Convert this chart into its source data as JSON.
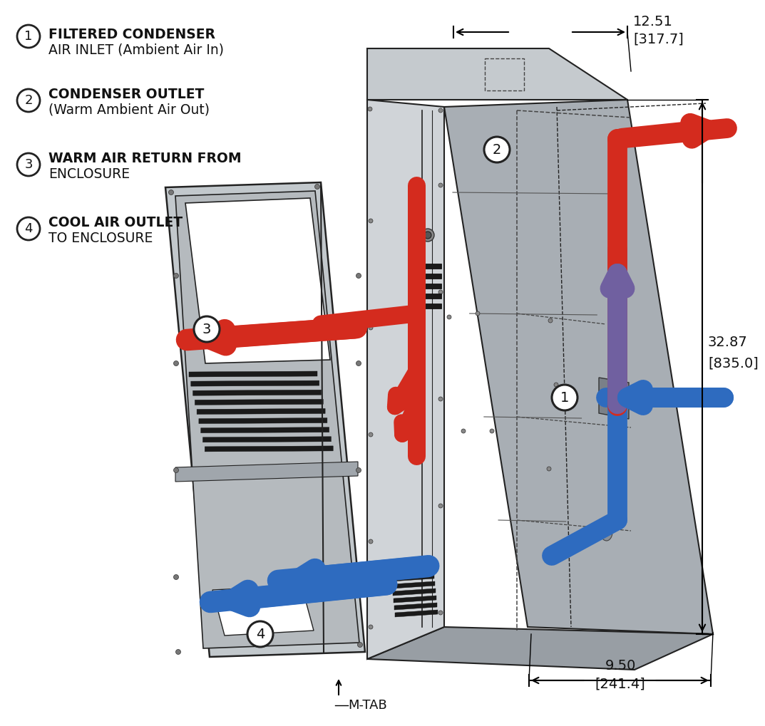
{
  "bg_color": "#ffffff",
  "label1_line1": "FILTERED CONDENSER",
  "label1_line2": "AIR INLET (Ambient Air In)",
  "label2_line1": "CONDENSER OUTLET",
  "label2_line2": "(Warm Ambient Air Out)",
  "label3_line1": "WARM AIR RETURN FROM",
  "label3_line2": "ENCLOSURE",
  "label4_line1": "COOL AIR OUTLET",
  "label4_line2": "TO ENCLOSURE",
  "dim1_val": "12.51",
  "dim1_bracket": "[317.7]",
  "dim2_val": "32.87",
  "dim2_bracket": "[835.0]",
  "dim3_val": "9.50",
  "dim3_bracket": "[241.4]",
  "mtab_label": "M-TAB",
  "red_color": "#d42b1e",
  "blue_color": "#2e6bbf",
  "purple_color": "#7060a0",
  "gray_top": "#c5cace",
  "gray_front": "#d0d4d8",
  "gray_right": "#a8aeb4",
  "gray_side": "#b8bec4",
  "gray_door": "#c2c8cc",
  "gray_inner": "#9ca2a8",
  "outline_color": "#222222",
  "text_color": "#111111",
  "dim_color": "#111111"
}
